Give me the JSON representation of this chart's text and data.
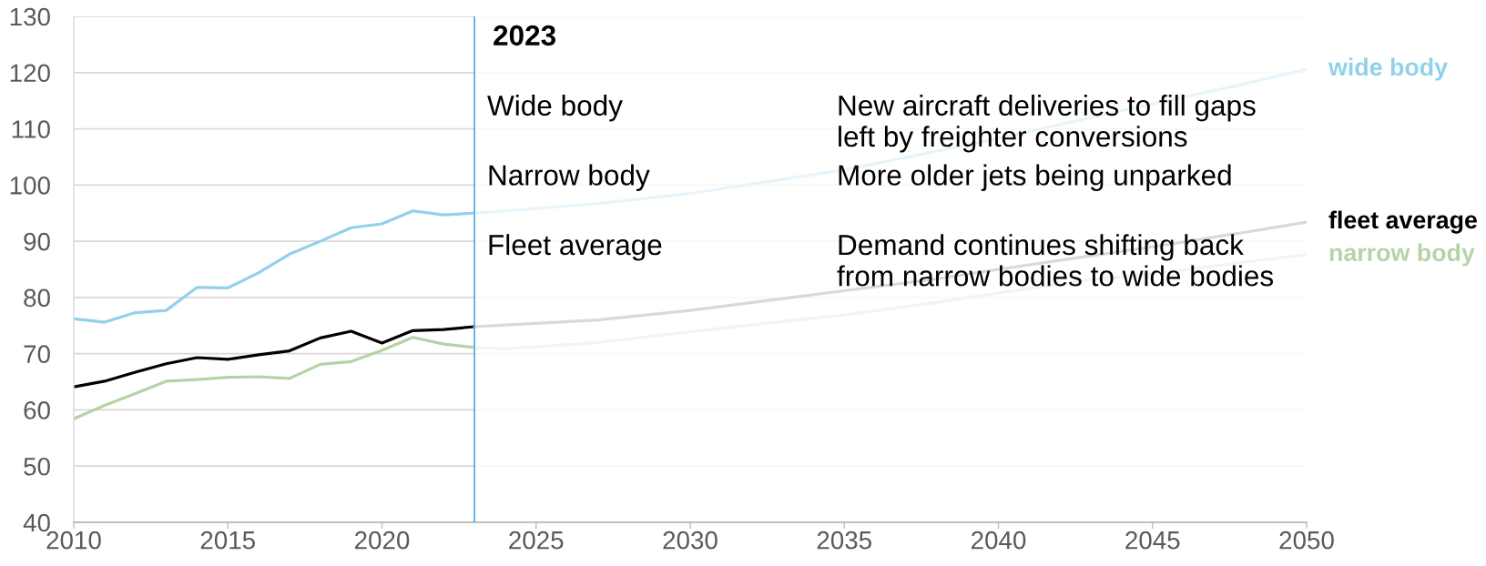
{
  "chart_data": {
    "type": "line",
    "series": [
      {
        "color": "#92d0ec",
        "x": [
          2010,
          2011,
          2012,
          2013,
          2014,
          2015,
          2016,
          2017,
          2018,
          2019,
          2020,
          2021,
          2022,
          2023
        ],
        "values": [
          76.2,
          75.6,
          77.3,
          77.7,
          81.8,
          81.7,
          84.4,
          87.7,
          90.0,
          92.4,
          93.1,
          95.4,
          94.7,
          95.0
        ]
      },
      {
        "name": "wide body",
        "color": "#e8f4fb",
        "x": [
          2023,
          2024,
          2025,
          2027,
          2030,
          2033,
          2035,
          2038,
          2040,
          2043,
          2045,
          2048,
          2050
        ],
        "values": [
          95.0,
          95.4,
          95.8,
          96.7,
          98.5,
          101.0,
          102.7,
          106.0,
          108.3,
          112.0,
          114.4,
          118.0,
          120.6
        ]
      },
      {
        "color": "#000000",
        "x": [
          2010,
          2011,
          2012,
          2013,
          2014,
          2015,
          2016,
          2017,
          2018,
          2019,
          2020,
          2021,
          2022,
          2023
        ],
        "values": [
          64.1,
          65.1,
          66.7,
          68.2,
          69.3,
          69.0,
          69.8,
          70.5,
          72.8,
          74.0,
          71.9,
          74.1,
          74.3,
          74.8
        ]
      },
      {
        "name": "fleet average",
        "color": "#d9d9d9",
        "x": [
          2023,
          2024,
          2025,
          2027,
          2030,
          2033,
          2035,
          2038,
          2040,
          2043,
          2045,
          2048,
          2050
        ],
        "values": [
          74.8,
          75.1,
          75.4,
          76.0,
          77.7,
          79.8,
          81.2,
          83.3,
          85.0,
          87.4,
          89.0,
          91.6,
          93.4
        ]
      },
      {
        "color": "#b4d3a6",
        "x": [
          2010,
          2011,
          2012,
          2013,
          2014,
          2015,
          2016,
          2017,
          2018,
          2019,
          2020,
          2021,
          2022,
          2023
        ],
        "values": [
          58.4,
          60.8,
          62.9,
          65.1,
          65.4,
          65.8,
          65.9,
          65.6,
          68.1,
          68.6,
          70.6,
          72.9,
          71.7,
          71.1
        ]
      },
      {
        "name": "narrow body",
        "color": "#f1f5ec",
        "x": [
          2023,
          2024,
          2025,
          2027,
          2030,
          2033,
          2035,
          2038,
          2040,
          2043,
          2045,
          2048,
          2050
        ],
        "values": [
          71.1,
          70.9,
          71.2,
          72.0,
          73.9,
          75.7,
          76.9,
          79.1,
          80.8,
          83.1,
          84.2,
          86.3,
          87.6
        ]
      }
    ],
    "xlim": [
      2010,
      2050
    ],
    "xticks": [
      2010,
      2015,
      2020,
      2025,
      2030,
      2035,
      2040,
      2045,
      2050
    ],
    "ylim": [
      40,
      130
    ],
    "yticks": [
      40,
      50,
      60,
      70,
      80,
      90,
      100,
      110,
      120,
      130
    ],
    "grid": "y",
    "ref_lines": [
      {
        "axis": "x",
        "value": 2023,
        "label": "2023",
        "color": "#1f9bd7"
      }
    ],
    "bands": [
      {
        "axis": "x",
        "from": 2023,
        "to": 2050,
        "color": "#ffffff"
      }
    ],
    "annotations": [
      "Wide body",
      "New aircraft deliveries to fill gaps\nleft by freighter conversions",
      "Narrow body",
      "More older jets being unparked",
      "Fleet average",
      "Demand continues shifting back\nfrom narrow bodies to wide bodies"
    ]
  }
}
